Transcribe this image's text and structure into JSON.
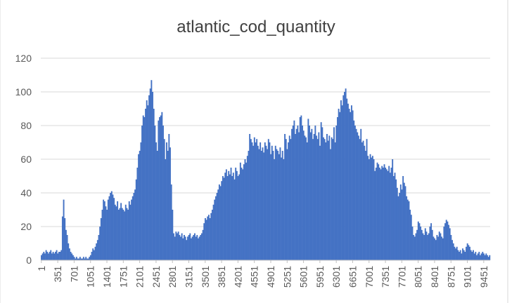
{
  "chart_data": {
    "type": "bar",
    "title": "atlantic_cod_quantity",
    "xlabel": "",
    "ylabel": "",
    "ylim": [
      0,
      120
    ],
    "yticks": [
      0,
      20,
      40,
      60,
      80,
      100,
      120
    ],
    "grid": true,
    "legend": "none",
    "bar_color": "#4472C4",
    "x_tick_labels": [
      "1",
      "351",
      "701",
      "1051",
      "1401",
      "1751",
      "2101",
      "2451",
      "2801",
      "3151",
      "3501",
      "3851",
      "4201",
      "4551",
      "4901",
      "5251",
      "5601",
      "5951",
      "6301",
      "6651",
      "7001",
      "7351",
      "7701",
      "8051",
      "8401",
      "8751",
      "9101",
      "9451"
    ],
    "x_start": 1,
    "x_step": 25,
    "values": [
      3,
      4,
      5,
      4,
      6,
      5,
      4,
      5,
      6,
      4,
      5,
      4,
      5,
      6,
      4,
      5,
      5,
      6,
      26,
      36,
      25,
      18,
      15,
      10,
      7,
      5,
      4,
      3,
      2,
      1,
      2,
      1,
      1,
      2,
      1,
      1,
      2,
      1,
      2,
      1,
      1,
      2,
      3,
      5,
      7,
      6,
      8,
      10,
      12,
      15,
      20,
      25,
      30,
      36,
      35,
      32,
      30,
      36,
      38,
      40,
      41,
      39,
      37,
      33,
      32,
      35,
      30,
      31,
      34,
      31,
      30,
      29,
      33,
      31,
      30,
      35,
      33,
      36,
      38,
      40,
      42,
      48,
      55,
      63,
      65,
      70,
      80,
      86,
      85,
      90,
      95,
      92,
      98,
      102,
      107,
      100,
      90,
      80,
      70,
      65,
      83,
      85,
      86,
      88,
      80,
      72,
      60,
      70,
      65,
      75,
      67,
      45,
      30,
      16,
      14,
      17,
      16,
      17,
      15,
      14,
      16,
      13,
      15,
      14,
      12,
      14,
      15,
      16,
      13,
      14,
      15,
      16,
      14,
      15,
      13,
      14,
      15,
      16,
      18,
      22,
      25,
      24,
      26,
      27,
      25,
      28,
      30,
      33,
      36,
      38,
      40,
      42,
      45,
      44,
      47,
      50,
      49,
      52,
      54,
      50,
      53,
      51,
      55,
      50,
      52,
      48,
      55,
      53,
      50,
      51,
      58,
      55,
      54,
      57,
      60,
      58,
      62,
      65,
      75,
      72,
      70,
      68,
      73,
      70,
      72,
      68,
      66,
      70,
      65,
      67,
      64,
      70,
      68,
      66,
      72,
      70,
      63,
      68,
      65,
      60,
      68,
      66,
      65,
      63,
      67,
      61,
      65,
      60,
      75,
      72,
      66,
      70,
      74,
      72,
      78,
      80,
      83,
      75,
      78,
      80,
      76,
      85,
      86,
      80,
      77,
      74,
      73,
      70,
      84,
      80,
      76,
      78,
      72,
      75,
      80,
      74,
      72,
      76,
      68,
      82,
      79,
      73,
      72,
      70,
      75,
      71,
      74,
      66,
      73,
      72,
      79,
      70,
      80,
      85,
      90,
      88,
      95,
      92,
      98,
      100,
      102,
      96,
      93,
      90,
      88,
      92,
      89,
      83,
      80,
      78,
      76,
      74,
      72,
      78,
      70,
      71,
      68,
      65,
      72,
      62,
      60,
      63,
      61,
      62,
      60,
      53,
      55,
      58,
      57,
      55,
      54,
      56,
      55,
      57,
      55,
      54,
      53,
      56,
      52,
      55,
      60,
      50,
      52,
      48,
      43,
      38,
      40,
      45,
      42,
      50,
      46,
      44,
      38,
      36,
      35,
      30,
      27,
      20,
      15,
      14,
      16,
      18,
      23,
      22,
      20,
      18,
      16,
      15,
      19,
      17,
      15,
      16,
      20,
      22,
      18,
      14,
      13,
      12,
      15,
      14,
      17,
      16,
      14,
      13,
      20,
      22,
      24,
      23,
      21,
      19,
      15,
      12,
      10,
      8,
      7,
      8,
      6,
      5,
      6,
      4,
      7,
      6,
      5,
      8,
      10,
      9,
      8,
      6,
      5,
      6,
      4,
      5,
      3,
      4,
      5,
      3,
      4,
      5,
      4,
      3,
      4,
      3,
      2,
      3
    ]
  }
}
